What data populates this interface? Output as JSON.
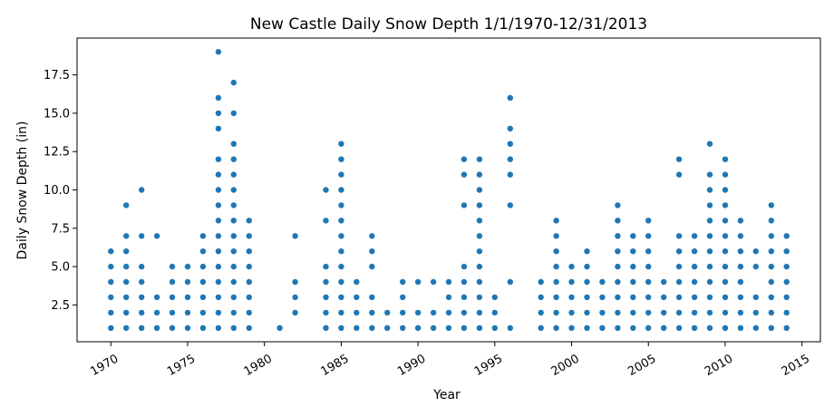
{
  "chart_data": {
    "type": "scatter",
    "title": "New Castle Daily Snow Depth 1/1/1970-12/31/2013",
    "xlabel": "Year",
    "ylabel": "Daily Snow Depth (in)",
    "xlim": [
      1967.8,
      2016.2
    ],
    "ylim": [
      0.1,
      19.9
    ],
    "x_ticks": [
      1970,
      1975,
      1980,
      1985,
      1990,
      1995,
      2000,
      2005,
      2010,
      2015
    ],
    "x_tick_labels": [
      "1970",
      "1975",
      "1980",
      "1985",
      "1990",
      "1995",
      "2000",
      "2005",
      "2010",
      "2015"
    ],
    "y_ticks": [
      2.5,
      5.0,
      7.5,
      10.0,
      12.5,
      15.0,
      17.5
    ],
    "y_tick_labels": [
      "2.5",
      "5.0",
      "7.5",
      "10.0",
      "12.5",
      "15.0",
      "17.5"
    ],
    "marker_color": "#1f77b4",
    "grid": false,
    "columns": [
      {
        "x": 1970,
        "depths": [
          1,
          2,
          3,
          4,
          5,
          6
        ]
      },
      {
        "x": 1971,
        "depths": [
          1,
          2,
          3,
          4,
          5,
          6,
          7,
          9
        ]
      },
      {
        "x": 1972,
        "depths": [
          1,
          2,
          3,
          4,
          5,
          7,
          10
        ]
      },
      {
        "x": 1973,
        "depths": [
          1,
          2,
          3,
          7
        ]
      },
      {
        "x": 1974,
        "depths": [
          1,
          2,
          3,
          4,
          5
        ]
      },
      {
        "x": 1975,
        "depths": [
          1,
          2,
          3,
          4,
          5
        ]
      },
      {
        "x": 1976,
        "depths": [
          1,
          2,
          3,
          4,
          5,
          6,
          7
        ]
      },
      {
        "x": 1977,
        "depths": [
          1,
          2,
          3,
          4,
          5,
          6,
          7,
          8,
          9,
          10,
          11,
          12,
          14,
          15,
          16,
          19
        ]
      },
      {
        "x": 1978,
        "depths": [
          1,
          2,
          3,
          4,
          5,
          6,
          7,
          8,
          9,
          10,
          11,
          12,
          13,
          15,
          17
        ]
      },
      {
        "x": 1979,
        "depths": [
          1,
          2,
          3,
          4,
          5,
          6,
          7,
          8
        ]
      },
      {
        "x": 1981,
        "depths": [
          1
        ]
      },
      {
        "x": 1982,
        "depths": [
          2,
          3,
          4,
          7
        ]
      },
      {
        "x": 1984,
        "depths": [
          1,
          2,
          3,
          4,
          5,
          8,
          10
        ]
      },
      {
        "x": 1985,
        "depths": [
          1,
          2,
          3,
          4,
          5,
          6,
          7,
          8,
          9,
          10,
          11,
          12,
          13
        ]
      },
      {
        "x": 1986,
        "depths": [
          1,
          2,
          3,
          4
        ]
      },
      {
        "x": 1987,
        "depths": [
          1,
          2,
          3,
          5,
          6,
          7
        ]
      },
      {
        "x": 1988,
        "depths": [
          1,
          2
        ]
      },
      {
        "x": 1989,
        "depths": [
          1,
          2,
          3,
          4
        ]
      },
      {
        "x": 1990,
        "depths": [
          1,
          2,
          4
        ]
      },
      {
        "x": 1991,
        "depths": [
          1,
          2,
          4
        ]
      },
      {
        "x": 1992,
        "depths": [
          1,
          2,
          3,
          4
        ]
      },
      {
        "x": 1993,
        "depths": [
          1,
          2,
          3,
          4,
          5,
          9,
          11,
          12
        ]
      },
      {
        "x": 1994,
        "depths": [
          1,
          2,
          3,
          4,
          5,
          6,
          7,
          8,
          9,
          10,
          11,
          12
        ]
      },
      {
        "x": 1995,
        "depths": [
          1,
          2,
          3
        ]
      },
      {
        "x": 1996,
        "depths": [
          1,
          4,
          9,
          11,
          12,
          13,
          14,
          16
        ]
      },
      {
        "x": 1998,
        "depths": [
          1,
          2,
          3,
          4
        ]
      },
      {
        "x": 1999,
        "depths": [
          1,
          2,
          3,
          4,
          5,
          6,
          7,
          8
        ]
      },
      {
        "x": 2000,
        "depths": [
          1,
          2,
          3,
          4,
          5
        ]
      },
      {
        "x": 2001,
        "depths": [
          1,
          2,
          3,
          4,
          5,
          6
        ]
      },
      {
        "x": 2002,
        "depths": [
          1,
          2,
          3,
          4
        ]
      },
      {
        "x": 2003,
        "depths": [
          1,
          2,
          3,
          4,
          5,
          6,
          7,
          8,
          9
        ]
      },
      {
        "x": 2004,
        "depths": [
          1,
          2,
          3,
          4,
          5,
          6,
          7
        ]
      },
      {
        "x": 2005,
        "depths": [
          1,
          2,
          3,
          4,
          5,
          6,
          7,
          8
        ]
      },
      {
        "x": 2006,
        "depths": [
          1,
          2,
          3,
          4
        ]
      },
      {
        "x": 2007,
        "depths": [
          1,
          2,
          3,
          4,
          5,
          6,
          7,
          11,
          12
        ]
      },
      {
        "x": 2008,
        "depths": [
          1,
          2,
          3,
          4,
          5,
          6,
          7
        ]
      },
      {
        "x": 2009,
        "depths": [
          1,
          2,
          3,
          4,
          5,
          6,
          7,
          8,
          9,
          10,
          11,
          13
        ]
      },
      {
        "x": 2010,
        "depths": [
          1,
          2,
          3,
          4,
          5,
          6,
          7,
          8,
          9,
          10,
          11,
          12
        ]
      },
      {
        "x": 2011,
        "depths": [
          1,
          2,
          3,
          4,
          5,
          6,
          7,
          8
        ]
      },
      {
        "x": 2012,
        "depths": [
          1,
          2,
          3,
          5,
          6
        ]
      },
      {
        "x": 2013,
        "depths": [
          1,
          2,
          3,
          4,
          5,
          6,
          7,
          8,
          9
        ]
      },
      {
        "x": 2014,
        "depths": [
          1,
          2,
          3,
          4,
          5,
          6,
          7
        ]
      }
    ]
  }
}
